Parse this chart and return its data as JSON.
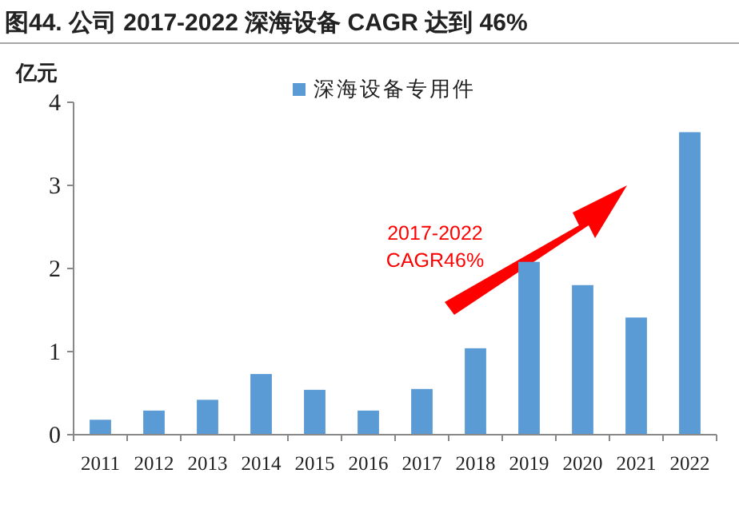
{
  "chart_data": {
    "type": "bar",
    "title": "图44. 公司 2017-2022 深海设备 CAGR 达到 46%",
    "ylabel": "亿元",
    "categories": [
      "2011",
      "2012",
      "2013",
      "2014",
      "2015",
      "2016",
      "2017",
      "2018",
      "2019",
      "2020",
      "2021",
      "2022"
    ],
    "series": [
      {
        "name": "深海设备专用件",
        "color": "#5b9bd5",
        "values": [
          0.18,
          0.29,
          0.42,
          0.73,
          0.54,
          0.29,
          0.55,
          1.04,
          2.08,
          1.8,
          1.41,
          3.64
        ]
      }
    ],
    "ylim": [
      0,
      4
    ],
    "yticks": [
      0,
      1,
      2,
      3,
      4
    ],
    "grid": false,
    "legend": "top right",
    "annotations": [
      "2017-2022",
      "CAGR46%"
    ]
  }
}
